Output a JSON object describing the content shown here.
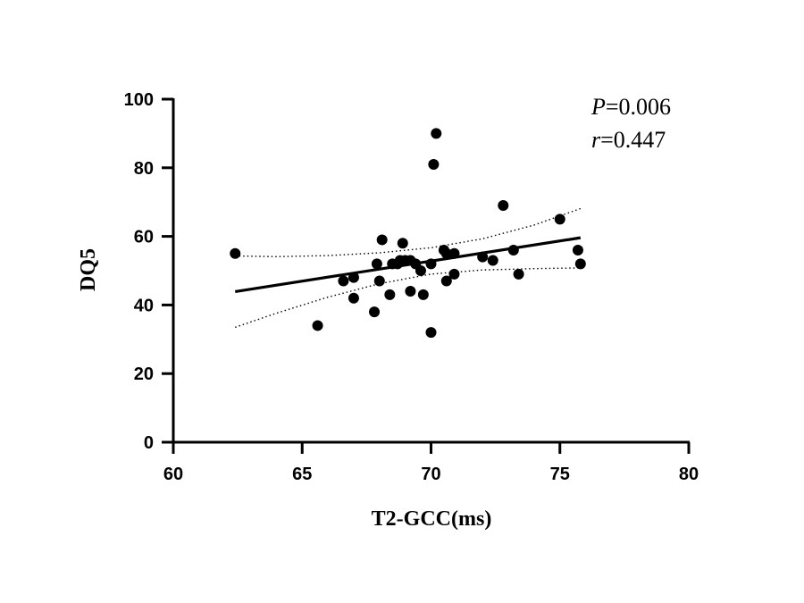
{
  "chart_data": {
    "type": "scatter",
    "xlabel": "T2-GCC(ms)",
    "ylabel": "DQ5",
    "xlim": [
      60,
      80
    ],
    "ylim": [
      0,
      100
    ],
    "x_ticks": [
      60,
      65,
      70,
      75,
      80
    ],
    "y_ticks": [
      0,
      20,
      40,
      60,
      80,
      100
    ],
    "grid": false,
    "annotations": {
      "p_symbol": "P",
      "p_value": "=0.006",
      "r_symbol": "r",
      "r_value": "=0.447"
    },
    "points": [
      {
        "x": 62.4,
        "y": 55
      },
      {
        "x": 65.6,
        "y": 34
      },
      {
        "x": 66.6,
        "y": 47
      },
      {
        "x": 67.0,
        "y": 48
      },
      {
        "x": 67.0,
        "y": 42
      },
      {
        "x": 67.8,
        "y": 38
      },
      {
        "x": 67.9,
        "y": 52
      },
      {
        "x": 68.0,
        "y": 47
      },
      {
        "x": 68.1,
        "y": 59
      },
      {
        "x": 68.4,
        "y": 43
      },
      {
        "x": 68.5,
        "y": 52
      },
      {
        "x": 68.7,
        "y": 52
      },
      {
        "x": 68.8,
        "y": 53
      },
      {
        "x": 68.9,
        "y": 58
      },
      {
        "x": 69.0,
        "y": 53
      },
      {
        "x": 69.2,
        "y": 44
      },
      {
        "x": 69.2,
        "y": 53
      },
      {
        "x": 69.4,
        "y": 52
      },
      {
        "x": 69.6,
        "y": 50
      },
      {
        "x": 69.7,
        "y": 43
      },
      {
        "x": 70.0,
        "y": 32
      },
      {
        "x": 70.0,
        "y": 52
      },
      {
        "x": 70.1,
        "y": 81
      },
      {
        "x": 70.2,
        "y": 90
      },
      {
        "x": 70.5,
        "y": 56
      },
      {
        "x": 70.6,
        "y": 55
      },
      {
        "x": 70.6,
        "y": 47
      },
      {
        "x": 70.9,
        "y": 55
      },
      {
        "x": 70.9,
        "y": 49
      },
      {
        "x": 72.0,
        "y": 54
      },
      {
        "x": 72.4,
        "y": 53
      },
      {
        "x": 72.8,
        "y": 69
      },
      {
        "x": 73.2,
        "y": 56
      },
      {
        "x": 73.4,
        "y": 49
      },
      {
        "x": 75.0,
        "y": 65
      },
      {
        "x": 75.7,
        "y": 56
      },
      {
        "x": 75.8,
        "y": 52
      }
    ],
    "regression": {
      "x_start": 62.4,
      "y_start": 43.9,
      "x_end": 75.8,
      "y_end": 59.6
    },
    "ci_upper": [
      {
        "x": 62.4,
        "y": 54.3
      },
      {
        "x": 64.0,
        "y": 54.1
      },
      {
        "x": 66.0,
        "y": 54.4
      },
      {
        "x": 68.0,
        "y": 55.2
      },
      {
        "x": 70.0,
        "y": 56.7
      },
      {
        "x": 72.0,
        "y": 59.3
      },
      {
        "x": 74.0,
        "y": 63.3
      },
      {
        "x": 75.8,
        "y": 68.1
      }
    ],
    "ci_lower": [
      {
        "x": 62.4,
        "y": 33.5
      },
      {
        "x": 64.0,
        "y": 37.6
      },
      {
        "x": 66.0,
        "y": 42.3
      },
      {
        "x": 68.0,
        "y": 46.2
      },
      {
        "x": 70.0,
        "y": 49.0
      },
      {
        "x": 72.0,
        "y": 50.2
      },
      {
        "x": 74.0,
        "y": 50.6
      },
      {
        "x": 75.8,
        "y": 50.8
      }
    ]
  }
}
